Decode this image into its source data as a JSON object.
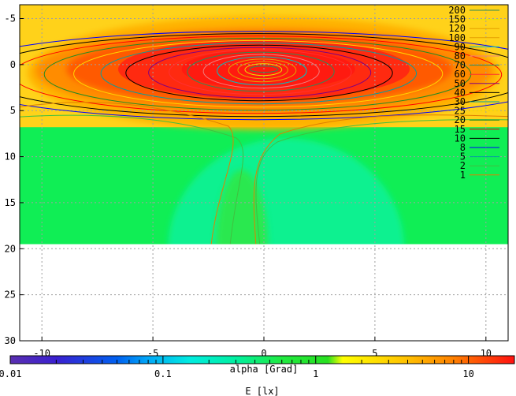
{
  "chart_data": {
    "type": "heatmap",
    "title": "",
    "xlabel": "alpha [Grad]",
    "ylabel": "",
    "xlim": [
      -11,
      11
    ],
    "ylim": [
      -6.5,
      30
    ],
    "x_ticks": [
      -10,
      -5,
      0,
      5,
      10
    ],
    "y_ticks": [
      -5,
      0,
      5,
      10,
      15,
      20,
      25,
      30
    ],
    "x_tick_labels": [
      "-10",
      "-5",
      "0",
      "5",
      "10"
    ],
    "y_tick_labels": [
      "-5",
      "0",
      "5",
      "10",
      "15",
      "20",
      "25",
      "30"
    ],
    "y_axis_reversed": true,
    "grid": true,
    "data_extent": {
      "x": [
        -11,
        11
      ],
      "y": [
        -6.5,
        19.5
      ]
    },
    "hotspot": {
      "x": 0,
      "y": 0.5,
      "value": 200
    },
    "contour_levels": [
      200,
      150,
      120,
      100,
      90,
      80,
      70,
      60,
      50,
      40,
      30,
      25,
      20,
      15,
      10,
      8,
      5,
      2,
      1
    ],
    "contour_colors": [
      "#2e8b57",
      "#e5e500",
      "#e5a000",
      "#e5a000",
      "#00c0c0",
      "#f08080",
      "#2e8b57",
      "#ff3030",
      "#800080",
      "#000000",
      "#00a0a0",
      "#ffd700",
      "#228b22",
      "#ff0000",
      "#000000",
      "#0000ff",
      "#00a0a0",
      "#40c040",
      "#e08000"
    ],
    "colorbar": {
      "label": "E [lx]",
      "scale": "log",
      "range": [
        0.01,
        20
      ],
      "tick_labels": [
        "0.01",
        "0.1",
        "1",
        "10"
      ],
      "tick_values": [
        0.01,
        0.1,
        1,
        10
      ]
    },
    "legend_position": "top-right"
  }
}
